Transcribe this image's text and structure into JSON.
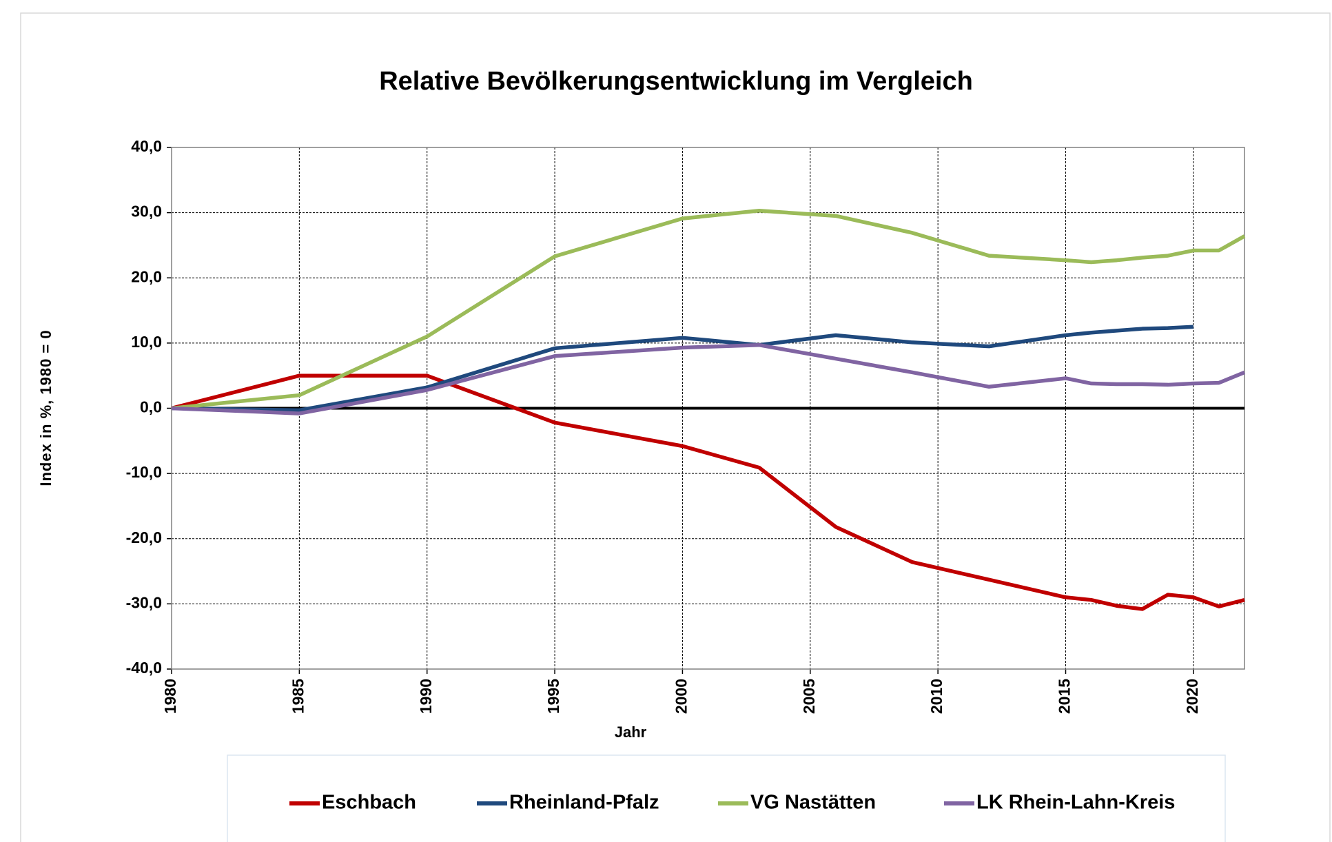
{
  "chart_data": {
    "type": "line",
    "title": "Relative Bevölkerungsentwicklung im Vergleich",
    "xlabel": "Jahr",
    "ylabel": "Index in %,  1980 = 0",
    "x": [
      1980,
      1985,
      1990,
      1995,
      2000,
      2003,
      2006,
      2009,
      2012,
      2015,
      2016,
      2017,
      2018,
      2019,
      2020,
      2021,
      2022
    ],
    "series": [
      {
        "name": "Eschbach",
        "color": "#c00000",
        "values": [
          0,
          5,
          5,
          -2.2,
          -5.8,
          -9.1,
          -18.2,
          -23.6,
          -26.3,
          -29.0,
          -29.4,
          -30.3,
          -30.8,
          -28.6,
          -29.0,
          -30.4,
          -29.4
        ]
      },
      {
        "name": "Rheinland-Pfalz",
        "color": "#1f497d",
        "values": [
          0,
          -0.3,
          3.2,
          9.2,
          10.8,
          9.7,
          11.2,
          10.1,
          9.5,
          11.2,
          11.6,
          11.9,
          12.2,
          12.3,
          12.5,
          null,
          null
        ]
      },
      {
        "name": "VG Nastätten",
        "color": "#9bbb59",
        "values": [
          0,
          2.0,
          11.0,
          23.3,
          29.1,
          30.3,
          29.5,
          26.9,
          23.4,
          22.7,
          22.4,
          22.7,
          23.1,
          23.4,
          24.2,
          24.2,
          26.4
        ]
      },
      {
        "name": "LK Rhein-Lahn-Kreis",
        "color": "#8064a2",
        "values": [
          0,
          -0.8,
          2.8,
          8.0,
          9.3,
          9.7,
          7.6,
          5.5,
          3.3,
          4.6,
          3.8,
          3.7,
          3.7,
          3.6,
          3.8,
          3.9,
          5.5
        ]
      }
    ],
    "xlim": [
      1980,
      2022
    ],
    "xticks": [
      1980,
      1985,
      1990,
      1995,
      2000,
      2005,
      2010,
      2015,
      2020
    ],
    "ylim": [
      -40,
      40
    ],
    "yticks": [
      {
        "value": -40,
        "label": "-40,0"
      },
      {
        "value": -30,
        "label": "-30,0"
      },
      {
        "value": -20,
        "label": "-20,0"
      },
      {
        "value": -10,
        "label": "-10,0"
      },
      {
        "value": 0,
        "label": "0,0"
      },
      {
        "value": 10,
        "label": "10,0"
      },
      {
        "value": 20,
        "label": "20,0"
      },
      {
        "value": 30,
        "label": "30,0"
      },
      {
        "value": 40,
        "label": "40,0"
      }
    ],
    "grid": true,
    "legend": "bottom"
  }
}
